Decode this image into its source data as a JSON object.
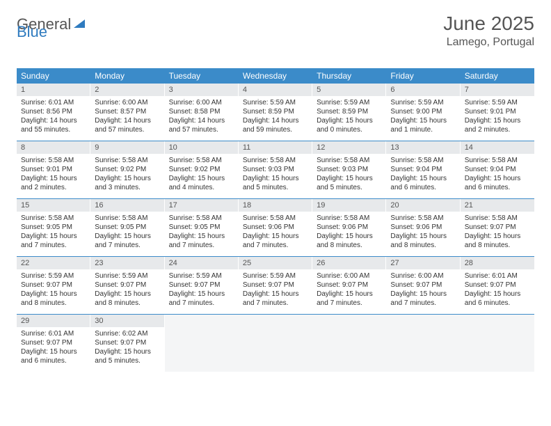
{
  "logo": {
    "text1": "General",
    "text2": "Blue"
  },
  "title": "June 2025",
  "location": "Lamego, Portugal",
  "weekdays": [
    "Sunday",
    "Monday",
    "Tuesday",
    "Wednesday",
    "Thursday",
    "Friday",
    "Saturday"
  ],
  "colors": {
    "header_bg": "#3b8bc9",
    "header_text": "#ffffff",
    "daynum_bg": "#e7e9eb",
    "text": "#333333",
    "border": "#3b8bc9",
    "empty_bg": "#f4f5f6"
  },
  "weeks": [
    [
      {
        "n": "1",
        "sr": "Sunrise: 6:01 AM",
        "ss": "Sunset: 8:56 PM",
        "d1": "Daylight: 14 hours",
        "d2": "and 55 minutes."
      },
      {
        "n": "2",
        "sr": "Sunrise: 6:00 AM",
        "ss": "Sunset: 8:57 PM",
        "d1": "Daylight: 14 hours",
        "d2": "and 57 minutes."
      },
      {
        "n": "3",
        "sr": "Sunrise: 6:00 AM",
        "ss": "Sunset: 8:58 PM",
        "d1": "Daylight: 14 hours",
        "d2": "and 57 minutes."
      },
      {
        "n": "4",
        "sr": "Sunrise: 5:59 AM",
        "ss": "Sunset: 8:59 PM",
        "d1": "Daylight: 14 hours",
        "d2": "and 59 minutes."
      },
      {
        "n": "5",
        "sr": "Sunrise: 5:59 AM",
        "ss": "Sunset: 8:59 PM",
        "d1": "Daylight: 15 hours",
        "d2": "and 0 minutes."
      },
      {
        "n": "6",
        "sr": "Sunrise: 5:59 AM",
        "ss": "Sunset: 9:00 PM",
        "d1": "Daylight: 15 hours",
        "d2": "and 1 minute."
      },
      {
        "n": "7",
        "sr": "Sunrise: 5:59 AM",
        "ss": "Sunset: 9:01 PM",
        "d1": "Daylight: 15 hours",
        "d2": "and 2 minutes."
      }
    ],
    [
      {
        "n": "8",
        "sr": "Sunrise: 5:58 AM",
        "ss": "Sunset: 9:01 PM",
        "d1": "Daylight: 15 hours",
        "d2": "and 2 minutes."
      },
      {
        "n": "9",
        "sr": "Sunrise: 5:58 AM",
        "ss": "Sunset: 9:02 PM",
        "d1": "Daylight: 15 hours",
        "d2": "and 3 minutes."
      },
      {
        "n": "10",
        "sr": "Sunrise: 5:58 AM",
        "ss": "Sunset: 9:02 PM",
        "d1": "Daylight: 15 hours",
        "d2": "and 4 minutes."
      },
      {
        "n": "11",
        "sr": "Sunrise: 5:58 AM",
        "ss": "Sunset: 9:03 PM",
        "d1": "Daylight: 15 hours",
        "d2": "and 5 minutes."
      },
      {
        "n": "12",
        "sr": "Sunrise: 5:58 AM",
        "ss": "Sunset: 9:03 PM",
        "d1": "Daylight: 15 hours",
        "d2": "and 5 minutes."
      },
      {
        "n": "13",
        "sr": "Sunrise: 5:58 AM",
        "ss": "Sunset: 9:04 PM",
        "d1": "Daylight: 15 hours",
        "d2": "and 6 minutes."
      },
      {
        "n": "14",
        "sr": "Sunrise: 5:58 AM",
        "ss": "Sunset: 9:04 PM",
        "d1": "Daylight: 15 hours",
        "d2": "and 6 minutes."
      }
    ],
    [
      {
        "n": "15",
        "sr": "Sunrise: 5:58 AM",
        "ss": "Sunset: 9:05 PM",
        "d1": "Daylight: 15 hours",
        "d2": "and 7 minutes."
      },
      {
        "n": "16",
        "sr": "Sunrise: 5:58 AM",
        "ss": "Sunset: 9:05 PM",
        "d1": "Daylight: 15 hours",
        "d2": "and 7 minutes."
      },
      {
        "n": "17",
        "sr": "Sunrise: 5:58 AM",
        "ss": "Sunset: 9:05 PM",
        "d1": "Daylight: 15 hours",
        "d2": "and 7 minutes."
      },
      {
        "n": "18",
        "sr": "Sunrise: 5:58 AM",
        "ss": "Sunset: 9:06 PM",
        "d1": "Daylight: 15 hours",
        "d2": "and 7 minutes."
      },
      {
        "n": "19",
        "sr": "Sunrise: 5:58 AM",
        "ss": "Sunset: 9:06 PM",
        "d1": "Daylight: 15 hours",
        "d2": "and 8 minutes."
      },
      {
        "n": "20",
        "sr": "Sunrise: 5:58 AM",
        "ss": "Sunset: 9:06 PM",
        "d1": "Daylight: 15 hours",
        "d2": "and 8 minutes."
      },
      {
        "n": "21",
        "sr": "Sunrise: 5:58 AM",
        "ss": "Sunset: 9:07 PM",
        "d1": "Daylight: 15 hours",
        "d2": "and 8 minutes."
      }
    ],
    [
      {
        "n": "22",
        "sr": "Sunrise: 5:59 AM",
        "ss": "Sunset: 9:07 PM",
        "d1": "Daylight: 15 hours",
        "d2": "and 8 minutes."
      },
      {
        "n": "23",
        "sr": "Sunrise: 5:59 AM",
        "ss": "Sunset: 9:07 PM",
        "d1": "Daylight: 15 hours",
        "d2": "and 8 minutes."
      },
      {
        "n": "24",
        "sr": "Sunrise: 5:59 AM",
        "ss": "Sunset: 9:07 PM",
        "d1": "Daylight: 15 hours",
        "d2": "and 7 minutes."
      },
      {
        "n": "25",
        "sr": "Sunrise: 5:59 AM",
        "ss": "Sunset: 9:07 PM",
        "d1": "Daylight: 15 hours",
        "d2": "and 7 minutes."
      },
      {
        "n": "26",
        "sr": "Sunrise: 6:00 AM",
        "ss": "Sunset: 9:07 PM",
        "d1": "Daylight: 15 hours",
        "d2": "and 7 minutes."
      },
      {
        "n": "27",
        "sr": "Sunrise: 6:00 AM",
        "ss": "Sunset: 9:07 PM",
        "d1": "Daylight: 15 hours",
        "d2": "and 7 minutes."
      },
      {
        "n": "28",
        "sr": "Sunrise: 6:01 AM",
        "ss": "Sunset: 9:07 PM",
        "d1": "Daylight: 15 hours",
        "d2": "and 6 minutes."
      }
    ],
    [
      {
        "n": "29",
        "sr": "Sunrise: 6:01 AM",
        "ss": "Sunset: 9:07 PM",
        "d1": "Daylight: 15 hours",
        "d2": "and 6 minutes."
      },
      {
        "n": "30",
        "sr": "Sunrise: 6:02 AM",
        "ss": "Sunset: 9:07 PM",
        "d1": "Daylight: 15 hours",
        "d2": "and 5 minutes."
      },
      null,
      null,
      null,
      null,
      null
    ]
  ]
}
